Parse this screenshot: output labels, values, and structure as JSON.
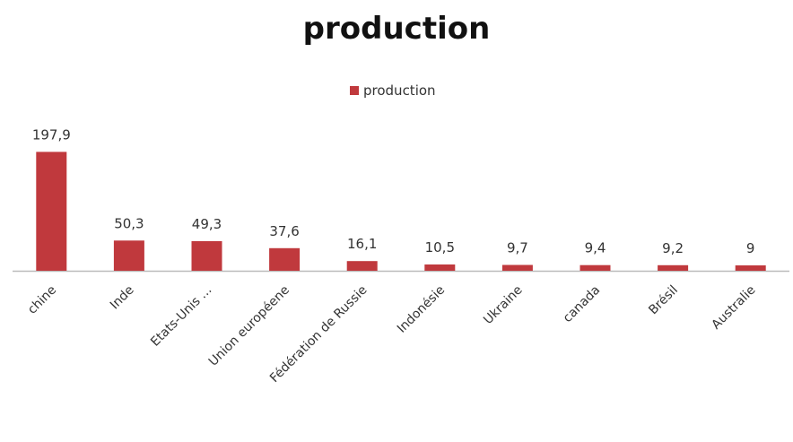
{
  "chart_data": {
    "type": "bar",
    "title": "production",
    "xlabel": "",
    "ylabel": "",
    "legend": {
      "placement": "top-center",
      "entries": [
        "production"
      ]
    },
    "grid": false,
    "ylim": [
      0,
      200
    ],
    "categories": [
      "chine",
      "Inde",
      "Etats-Unis ...",
      "Union européene",
      "Fédération de Russie",
      "Indonésie",
      "Ukraine",
      "canada",
      "Brésil",
      "Australie"
    ],
    "data_labels": [
      "197,9",
      "50,3",
      "49,3",
      "37,6",
      "16,1",
      "10,5",
      "9,7",
      "9,4",
      "9,2",
      "9"
    ],
    "series": [
      {
        "name": "production",
        "color": "#c0393d",
        "values": [
          197.9,
          50.3,
          49.3,
          37.6,
          16.1,
          10.5,
          9.7,
          9.4,
          9.2,
          9
        ]
      }
    ]
  }
}
